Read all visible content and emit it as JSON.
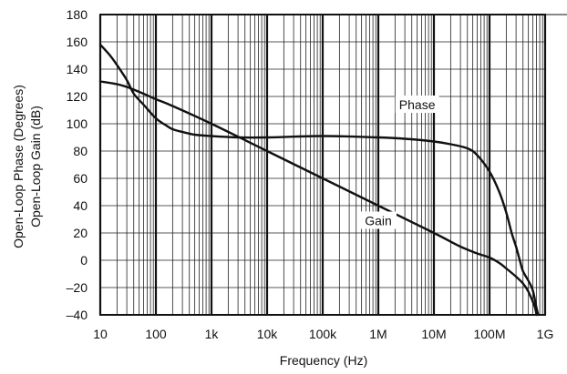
{
  "chart_data": {
    "type": "line",
    "title": "",
    "xlabel": "Frequency (Hz)",
    "ylabel_lines": [
      "Open-Loop Phase (Degrees)",
      "Open-Loop Gain (dB)"
    ],
    "x_scale": "log",
    "xlim": [
      10,
      1000000000
    ],
    "ylim": [
      -40,
      180
    ],
    "x_ticks": [
      {
        "value": 10,
        "label": "10"
      },
      {
        "value": 100,
        "label": "100"
      },
      {
        "value": 1000,
        "label": "1k"
      },
      {
        "value": 10000,
        "label": "10k"
      },
      {
        "value": 100000,
        "label": "100k"
      },
      {
        "value": 1000000,
        "label": "1M"
      },
      {
        "value": 10000000,
        "label": "10M"
      },
      {
        "value": 100000000,
        "label": "100M"
      },
      {
        "value": 1000000000,
        "label": "1G"
      }
    ],
    "y_ticks": [
      {
        "value": 180,
        "label": "180"
      },
      {
        "value": 160,
        "label": "160"
      },
      {
        "value": 140,
        "label": "140"
      },
      {
        "value": 120,
        "label": "120"
      },
      {
        "value": 100,
        "label": "100"
      },
      {
        "value": 80,
        "label": "80"
      },
      {
        "value": 60,
        "label": "60"
      },
      {
        "value": 40,
        "label": "40"
      },
      {
        "value": 20,
        "label": "20"
      },
      {
        "value": 0,
        "label": "0"
      },
      {
        "value": -20,
        "label": "–20"
      },
      {
        "value": -40,
        "label": "–40"
      }
    ],
    "grid": true,
    "series": [
      {
        "name": "Phase",
        "label_at": {
          "x": 5000000,
          "y": 112
        },
        "points": [
          [
            10,
            158
          ],
          [
            15,
            150
          ],
          [
            20,
            143
          ],
          [
            30,
            132
          ],
          [
            40,
            122
          ],
          [
            60,
            114
          ],
          [
            100,
            104
          ],
          [
            150,
            99
          ],
          [
            200,
            96
          ],
          [
            300,
            94
          ],
          [
            500,
            92
          ],
          [
            1000,
            91
          ],
          [
            3000,
            90
          ],
          [
            10000,
            90
          ],
          [
            100000,
            91
          ],
          [
            1000000,
            90
          ],
          [
            3000000,
            89
          ],
          [
            10000000,
            87
          ],
          [
            20000000,
            85
          ],
          [
            40000000,
            82
          ],
          [
            60000000,
            77
          ],
          [
            100000000,
            65
          ],
          [
            150000000,
            50
          ],
          [
            200000000,
            35
          ],
          [
            250000000,
            20
          ],
          [
            300000000,
            10
          ],
          [
            350000000,
            0
          ],
          [
            400000000,
            -8
          ],
          [
            500000000,
            -15
          ],
          [
            600000000,
            -22
          ],
          [
            700000000,
            -35
          ],
          [
            750000000,
            -40
          ]
        ]
      },
      {
        "name": "Gain",
        "label_at": {
          "x": 1000000,
          "y": 27
        },
        "points": [
          [
            10,
            131
          ],
          [
            20,
            129
          ],
          [
            30,
            127
          ],
          [
            40,
            125
          ],
          [
            60,
            122
          ],
          [
            100,
            118
          ],
          [
            200,
            113
          ],
          [
            1000,
            100
          ],
          [
            10000,
            80
          ],
          [
            100000,
            60
          ],
          [
            1000000,
            40
          ],
          [
            10000000,
            20
          ],
          [
            30000000,
            10
          ],
          [
            60000000,
            5
          ],
          [
            100000000,
            2
          ],
          [
            150000000,
            -2
          ],
          [
            200000000,
            -6
          ],
          [
            300000000,
            -12
          ],
          [
            400000000,
            -17
          ],
          [
            500000000,
            -23
          ],
          [
            650000000,
            -34
          ],
          [
            700000000,
            -40
          ]
        ]
      }
    ]
  }
}
